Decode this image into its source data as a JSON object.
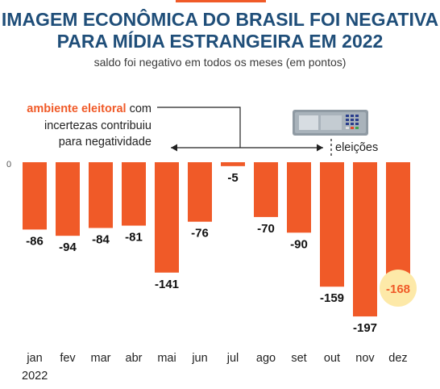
{
  "header": {
    "title_line1": "IMAGEM ECONÔMICA DO BRASIL FOI NEGATIVA",
    "title_line2": "PARA MÍDIA ESTRANGEIRA EM 2022",
    "subtitle": "saldo foi negativo em todos os meses (em pontos)"
  },
  "annotation": {
    "highlight": "ambiente eleitoral",
    "rest_line1": " com",
    "line2": "incertezas contribuiu",
    "line3": "para negatividade",
    "elections_label": "eleições"
  },
  "colors": {
    "bar": "#f05a28",
    "title": "#1f4e79",
    "accent": "#f05a28",
    "highlight_circle": "#fde9a8",
    "highlight_text": "#f05a28"
  },
  "chart_data": {
    "type": "bar",
    "title": "IMAGEM ECONÔMICA DO BRASIL FOI NEGATIVA PARA MÍDIA ESTRANGEIRA EM 2022",
    "subtitle": "saldo foi negativo em todos os meses (em pontos)",
    "categories": [
      "jan",
      "fev",
      "mar",
      "abr",
      "mai",
      "jun",
      "jul",
      "ago",
      "set",
      "out",
      "nov",
      "dez"
    ],
    "values": [
      -86,
      -94,
      -84,
      -81,
      -141,
      -76,
      -5,
      -70,
      -90,
      -159,
      -197,
      -168
    ],
    "year_label": "2022",
    "zero_label": "0",
    "ylim": [
      -200,
      0
    ],
    "grid": false,
    "highlighted_category": "dez"
  }
}
